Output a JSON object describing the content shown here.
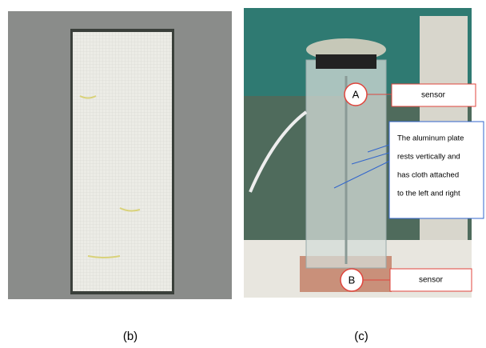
{
  "panels": [
    {
      "label": "(b)"
    },
    {
      "label": "(c)",
      "callouts": [
        {
          "marker": "A",
          "text": "sensor"
        },
        {
          "marker": "B",
          "text": "sensor"
        }
      ],
      "note": [
        "The aluminum plate",
        "rests vertically and",
        "has cloth attached",
        "to the left and right"
      ]
    }
  ]
}
